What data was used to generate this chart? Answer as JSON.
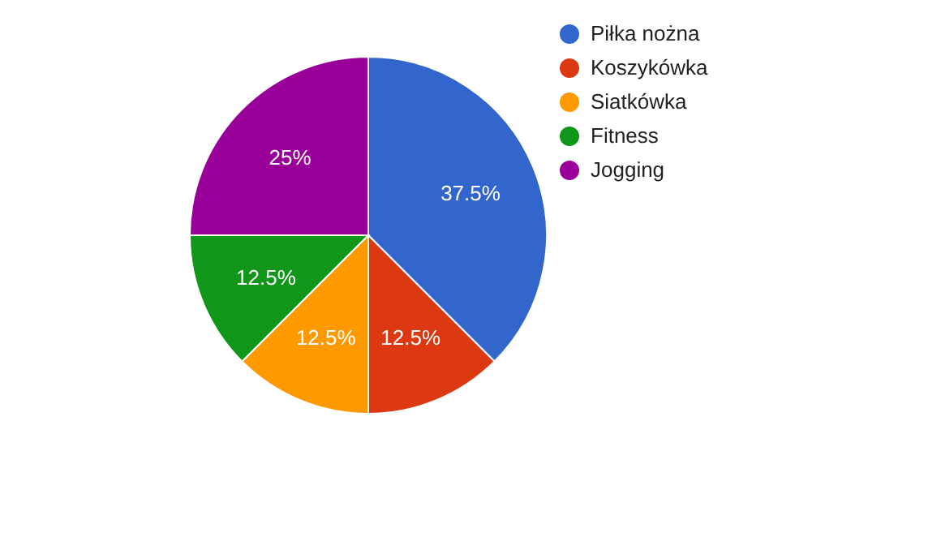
{
  "chart_data": {
    "type": "pie",
    "categories": [
      "Piłka nożna",
      "Koszykówka",
      "Siatkówka",
      "Fitness",
      "Jogging"
    ],
    "values": [
      37.5,
      12.5,
      12.5,
      12.5,
      25
    ],
    "colors": [
      "#3366cc",
      "#dc3912",
      "#ff9900",
      "#109618",
      "#990099"
    ],
    "value_labels": [
      "37.5%",
      "12.5%",
      "12.5%",
      "12.5%",
      "25%"
    ],
    "legend": "top right"
  }
}
